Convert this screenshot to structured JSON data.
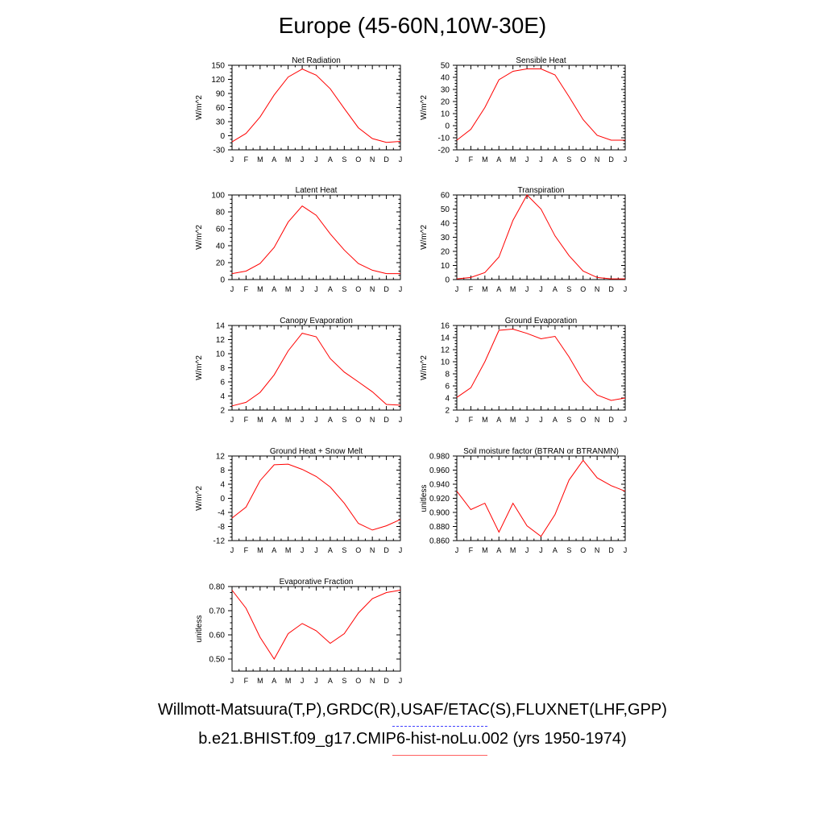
{
  "title": "Europe (45-60N,10W-30E)",
  "legend": {
    "observations": "Willmott-Matsuura(T,P),GRDC(R),USAF/ETAC(S),FLUXNET(LHF,GPP)",
    "model": "b.e21.BHIST.f09_g17.CMIP6-hist-noLu.002 (yrs 1950-1974)"
  },
  "colors": {
    "model_line": "#ff0000",
    "observation_line": "#4040ff",
    "axis": "#000000"
  },
  "chart_data": [
    {
      "type": "line",
      "title": "Net Radiation",
      "xlabel": "",
      "ylabel": "W/m^2",
      "categories": [
        "J",
        "F",
        "M",
        "A",
        "M",
        "J",
        "J",
        "A",
        "S",
        "O",
        "N",
        "D",
        "J"
      ],
      "ylim": [
        -30,
        150
      ],
      "yticks": [
        -30,
        0,
        30,
        60,
        90,
        120,
        150
      ],
      "ytick_labels": [
        "-30",
        "0",
        "30",
        "60",
        "90",
        "120",
        "150"
      ],
      "series": [
        {
          "values": [
            -13,
            5,
            40,
            87,
            125,
            142,
            129,
            100,
            58,
            17,
            -6,
            -14,
            -12
          ]
        }
      ]
    },
    {
      "type": "line",
      "title": "Sensible Heat",
      "xlabel": "",
      "ylabel": "W/m^2",
      "categories": [
        "J",
        "F",
        "M",
        "A",
        "M",
        "J",
        "J",
        "A",
        "S",
        "O",
        "N",
        "D",
        "J"
      ],
      "ylim": [
        -20,
        50
      ],
      "yticks": [
        -20,
        -10,
        0,
        10,
        20,
        30,
        40,
        50
      ],
      "ytick_labels": [
        "-20",
        "-10",
        "0",
        "10",
        "20",
        "30",
        "40",
        "50"
      ],
      "series": [
        {
          "values": [
            -12,
            -3,
            15,
            38,
            45,
            47,
            47,
            42,
            24,
            5,
            -8,
            -12,
            -12
          ]
        }
      ]
    },
    {
      "type": "line",
      "title": "Latent Heat",
      "xlabel": "",
      "ylabel": "W/m^2",
      "categories": [
        "J",
        "F",
        "M",
        "A",
        "M",
        "J",
        "J",
        "A",
        "S",
        "O",
        "N",
        "D",
        "J"
      ],
      "ylim": [
        0,
        100
      ],
      "yticks": [
        0,
        20,
        40,
        60,
        80,
        100
      ],
      "ytick_labels": [
        "0",
        "20",
        "40",
        "60",
        "80",
        "100"
      ],
      "series": [
        {
          "values": [
            7,
            10,
            19,
            38,
            68,
            87,
            76,
            54,
            35,
            19,
            11,
            7,
            7
          ]
        }
      ]
    },
    {
      "type": "line",
      "title": "Transpiration",
      "xlabel": "",
      "ylabel": "W/m^2",
      "categories": [
        "J",
        "F",
        "M",
        "A",
        "M",
        "J",
        "J",
        "A",
        "S",
        "O",
        "N",
        "D",
        "J"
      ],
      "ylim": [
        0,
        60
      ],
      "yticks": [
        0,
        10,
        20,
        30,
        40,
        50,
        60
      ],
      "ytick_labels": [
        "0",
        "10",
        "20",
        "30",
        "40",
        "50",
        "60"
      ],
      "series": [
        {
          "values": [
            0.5,
            1.5,
            5,
            16,
            42,
            60,
            50,
            31,
            17,
            6,
            1.5,
            0.5,
            0.5
          ]
        }
      ]
    },
    {
      "type": "line",
      "title": "Canopy Evaporation",
      "xlabel": "",
      "ylabel": "W/m^2",
      "categories": [
        "J",
        "F",
        "M",
        "A",
        "M",
        "J",
        "J",
        "A",
        "S",
        "O",
        "N",
        "D",
        "J"
      ],
      "ylim": [
        2,
        14
      ],
      "yticks": [
        2,
        4,
        6,
        8,
        10,
        12,
        14
      ],
      "ytick_labels": [
        "2",
        "4",
        "6",
        "8",
        "10",
        "12",
        "14"
      ],
      "series": [
        {
          "values": [
            2.6,
            3.1,
            4.5,
            7.0,
            10.4,
            12.9,
            12.4,
            9.3,
            7.4,
            6.0,
            4.6,
            2.8,
            2.7
          ]
        }
      ]
    },
    {
      "type": "line",
      "title": "Ground Evaporation",
      "xlabel": "",
      "ylabel": "W/m^2",
      "categories": [
        "J",
        "F",
        "M",
        "A",
        "M",
        "J",
        "J",
        "A",
        "S",
        "O",
        "N",
        "D",
        "J"
      ],
      "ylim": [
        2,
        16
      ],
      "yticks": [
        2,
        4,
        6,
        8,
        10,
        12,
        14,
        16
      ],
      "ytick_labels": [
        "2",
        "4",
        "6",
        "8",
        "10",
        "12",
        "14",
        "16"
      ],
      "series": [
        {
          "values": [
            4.1,
            5.7,
            10.0,
            15.2,
            15.4,
            14.7,
            13.8,
            14.2,
            10.8,
            6.8,
            4.5,
            3.6,
            4.0
          ]
        }
      ]
    },
    {
      "type": "line",
      "title": "Ground Heat + Snow Melt",
      "xlabel": "",
      "ylabel": "W/m^2",
      "categories": [
        "J",
        "F",
        "M",
        "A",
        "M",
        "J",
        "J",
        "A",
        "S",
        "O",
        "N",
        "D",
        "J"
      ],
      "ylim": [
        -12,
        12
      ],
      "yticks": [
        -12,
        -8,
        -4,
        0,
        4,
        8,
        12
      ],
      "ytick_labels": [
        "-12",
        "-8",
        "-4",
        "0",
        "4",
        "8",
        "12"
      ],
      "series": [
        {
          "values": [
            -5.6,
            -2.5,
            5.0,
            9.5,
            9.7,
            8.2,
            6.2,
            3.2,
            -1.4,
            -7.1,
            -9.0,
            -7.8,
            -6.0
          ]
        }
      ]
    },
    {
      "type": "line",
      "title": "Soil moisture factor (BTRAN or BTRANMN)",
      "xlabel": "",
      "ylabel": "unitless",
      "categories": [
        "J",
        "F",
        "M",
        "A",
        "M",
        "J",
        "J",
        "A",
        "S",
        "O",
        "N",
        "D",
        "J"
      ],
      "ylim": [
        0.86,
        0.98
      ],
      "yticks": [
        0.86,
        0.88,
        0.9,
        0.92,
        0.94,
        0.96,
        0.98
      ],
      "ytick_labels": [
        "0.860",
        "0.880",
        "0.900",
        "0.920",
        "0.940",
        "0.960",
        "0.980"
      ],
      "series": [
        {
          "values": [
            0.93,
            0.904,
            0.913,
            0.872,
            0.913,
            0.881,
            0.866,
            0.897,
            0.946,
            0.974,
            0.949,
            0.938,
            0.93
          ]
        }
      ]
    },
    {
      "type": "line",
      "title": "Evaporative Fraction",
      "xlabel": "",
      "ylabel": "unitless",
      "categories": [
        "J",
        "F",
        "M",
        "A",
        "M",
        "J",
        "J",
        "A",
        "S",
        "O",
        "N",
        "D",
        "J"
      ],
      "ylim": [
        0.45,
        0.8
      ],
      "yticks": [
        0.5,
        0.6,
        0.7,
        0.8
      ],
      "ytick_labels": [
        "0.50",
        "0.60",
        "0.70",
        "0.80"
      ],
      "series": [
        {
          "values": [
            0.785,
            0.71,
            0.59,
            0.5,
            0.605,
            0.647,
            0.617,
            0.565,
            0.605,
            0.69,
            0.75,
            0.775,
            0.785
          ]
        }
      ]
    }
  ]
}
